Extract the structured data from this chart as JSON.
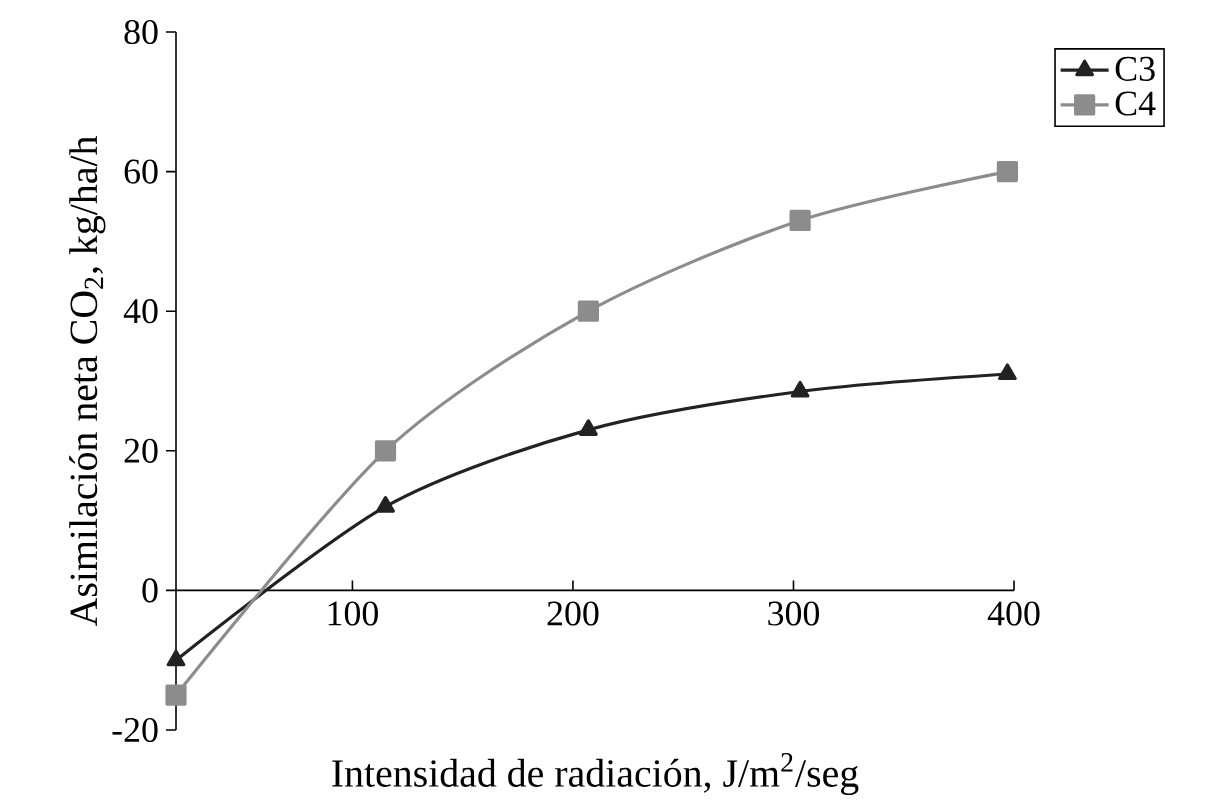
{
  "chart_data": {
    "type": "line",
    "xlabel": "Intensidad de radiación, J/m$^{2}$/seg",
    "ylabel": "Asimilación neta CO$_{2}$, kg/ha/h",
    "x": [
      20,
      115,
      207,
      303,
      397
    ],
    "series": [
      {
        "name": "C3",
        "color": "#222222",
        "marker": "triangle",
        "values": [
          -10,
          12,
          23,
          28.5,
          31
        ]
      },
      {
        "name": "C4",
        "color": "#8c8c8c",
        "marker": "square",
        "values": [
          -15,
          20,
          40,
          53,
          60
        ]
      }
    ],
    "xlim": [
      20,
      400
    ],
    "ylim": [
      -20,
      80
    ],
    "xticks": [
      100,
      200,
      300,
      400
    ],
    "yticks": [
      -20,
      0,
      20,
      40,
      60,
      80
    ],
    "grid": false,
    "legend": "top right"
  }
}
